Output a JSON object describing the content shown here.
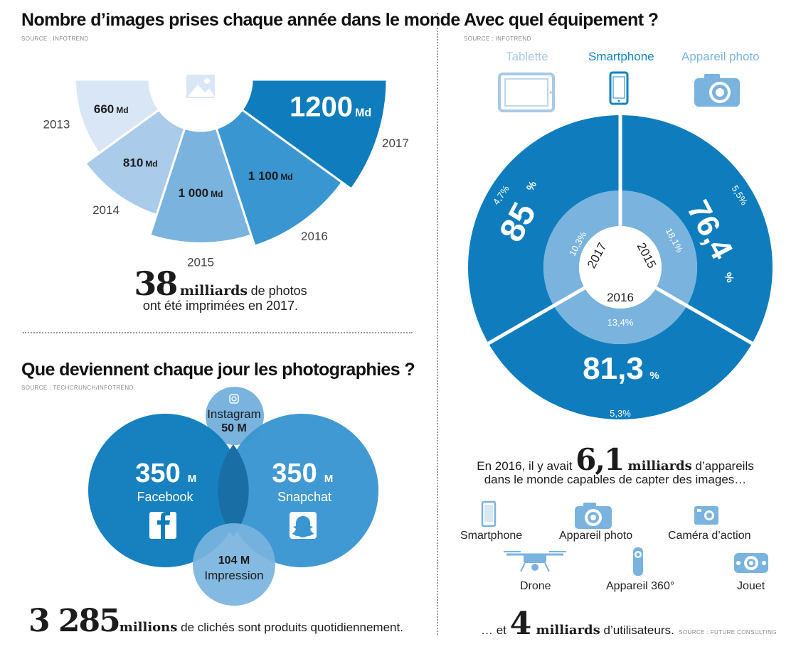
{
  "colors": {
    "dark": "#0f7dbd",
    "mid": "#3a96d1",
    "light": "#79b3de",
    "lighter": "#aacbea",
    "lightest": "#d8e6f5",
    "icon_light": "#a8c9e6",
    "icon_dark": "#1282c4"
  },
  "sec1": {
    "title": "Nombre d’images prises chaque année dans le monde",
    "source": "SOURCE : INFOTREND",
    "footer_big": "38",
    "footer_bold": "milliards",
    "footer_line1_rest": " de photos",
    "footer_line2": "ont été imprimées en 2017."
  },
  "sec2": {
    "title": "Avec quel équipement ?",
    "source": "SOURCE : INFOTREND",
    "legend": [
      "Tablette",
      "Smartphone",
      "Appareil photo"
    ],
    "text_pre": "En 2016, il y avait ",
    "text_big": "6,1",
    "text_bold": " milliards",
    "text_post": " d’appareils",
    "text_line2": "dans le monde capables de capter des images…",
    "devices": [
      "Smartphone",
      "Appareil photo",
      "Caméra d’action",
      "Drone",
      "Appareil 360°",
      "Jouet"
    ],
    "footer_pre": "… et ",
    "footer_big": "4",
    "footer_bold": " milliards",
    "footer_post": " d’utilisateurs.",
    "footer_source": "SOURCE : FUTURE CONSULTING"
  },
  "sec3": {
    "title": "Que deviennent chaque jour les photographies ?",
    "source": "SOURCE : TECHCRUNCH/INFOTREND",
    "facebook_value": "350",
    "facebook_unit": "M",
    "facebook_label": "Facebook",
    "snapchat_value": "350",
    "snapchat_unit": "M",
    "snapchat_label": "Snapchat",
    "instagram_label": "Instagram",
    "instagram_value": "50 M",
    "impression_value": "104 M",
    "impression_label": "Impression",
    "footer_big": "3 285",
    "footer_bold": "millions",
    "footer_rest": " de clichés sont produits quotidiennement."
  },
  "chart_data": [
    {
      "type": "bar",
      "title": "Nombre d’images prises chaque année dans le monde",
      "categories": [
        "2013",
        "2014",
        "2015",
        "2016",
        "2017"
      ],
      "labels": [
        "660 Md",
        "810 Md",
        "1 000 Md",
        "1 100 Md",
        "1200 Md"
      ],
      "values": [
        660,
        810,
        1000,
        1100,
        1200
      ],
      "unit": "Md"
    },
    {
      "type": "pie",
      "title": "Avec quel équipement ?",
      "rings": [
        "2017",
        "2015",
        "2016"
      ],
      "outer_values": [
        "85",
        "76,4",
        "81,3"
      ],
      "outer_unit": "%",
      "small_outer": [
        "4,7%",
        "5,5%",
        "5,3%"
      ],
      "inner_values": [
        "10,3%",
        "18,1%",
        "13,4%"
      ]
    },
    {
      "type": "bar",
      "title": "Que deviennent chaque jour les photographies ?",
      "categories": [
        "Facebook",
        "Snapchat",
        "Impression",
        "Instagram"
      ],
      "values": [
        350,
        350,
        104,
        50
      ],
      "unit": "M"
    }
  ]
}
